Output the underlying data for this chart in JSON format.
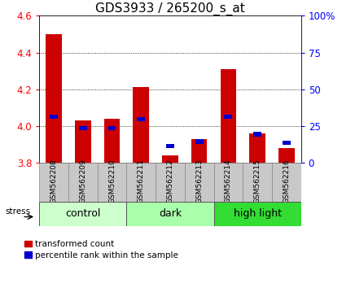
{
  "title": "GDS3933 / 265200_s_at",
  "samples": [
    "GSM562208",
    "GSM562209",
    "GSM562210",
    "GSM562211",
    "GSM562212",
    "GSM562213",
    "GSM562214",
    "GSM562215",
    "GSM562216"
  ],
  "red_values": [
    4.5,
    4.03,
    4.04,
    4.21,
    3.84,
    3.93,
    4.31,
    3.96,
    3.88
  ],
  "blue_percentile": [
    30,
    22,
    22,
    28,
    10,
    13,
    30,
    18,
    12
  ],
  "ymin": 3.8,
  "ymax": 4.6,
  "yticks": [
    3.8,
    4.0,
    4.2,
    4.4,
    4.6
  ],
  "right_yticks": [
    0,
    25,
    50,
    75,
    100
  ],
  "groups": [
    {
      "label": "control",
      "start": 0,
      "end": 2,
      "color": "#ccffcc"
    },
    {
      "label": "dark",
      "start": 3,
      "end": 5,
      "color": "#aaffaa"
    },
    {
      "label": "high light",
      "start": 6,
      "end": 8,
      "color": "#33dd33"
    }
  ],
  "bar_color_red": "#cc0000",
  "bar_color_blue": "#0000cc",
  "tick_label_area_color": "#c8c8c8",
  "legend_red": "transformed count",
  "legend_blue": "percentile rank within the sample",
  "stress_label": "stress",
  "title_fontsize": 11,
  "tick_fontsize": 8.5,
  "sample_fontsize": 6.5,
  "group_fontsize": 9
}
